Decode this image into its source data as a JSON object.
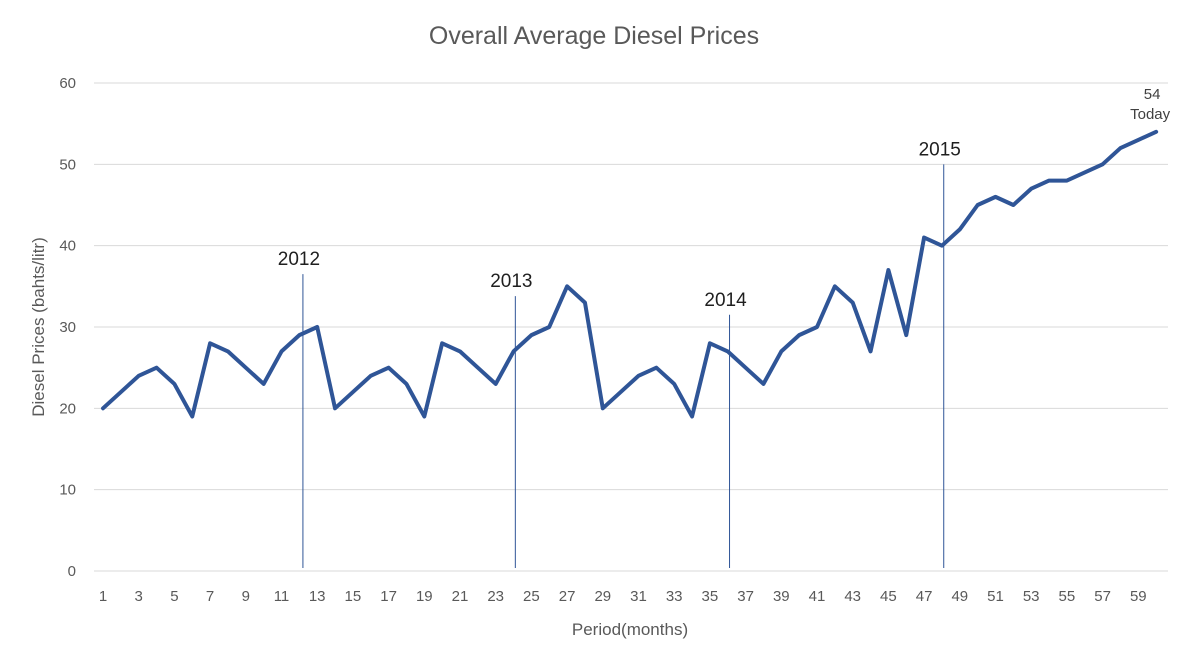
{
  "chart_data": {
    "type": "line",
    "title": "Overall  Average Diesel Prices",
    "xlabel": "Period(months)",
    "ylabel": "Diesel Prices (bahts/litr)",
    "ylim": [
      0,
      60
    ],
    "yticks": [
      0,
      10,
      20,
      30,
      40,
      50,
      60
    ],
    "xlim": [
      1,
      60
    ],
    "xticks": [
      1,
      3,
      5,
      7,
      9,
      11,
      13,
      15,
      17,
      19,
      21,
      23,
      25,
      27,
      29,
      31,
      33,
      35,
      37,
      39,
      41,
      43,
      45,
      47,
      49,
      51,
      53,
      55,
      57,
      59
    ],
    "grid": "horizontal",
    "legend": "none",
    "x": [
      1,
      2,
      3,
      4,
      5,
      6,
      7,
      8,
      9,
      10,
      11,
      12,
      13,
      14,
      15,
      16,
      17,
      18,
      19,
      20,
      21,
      22,
      23,
      24,
      25,
      26,
      27,
      28,
      29,
      30,
      31,
      32,
      33,
      34,
      35,
      36,
      37,
      38,
      39,
      40,
      41,
      42,
      43,
      44,
      45,
      46,
      47,
      48,
      49,
      50,
      51,
      52,
      53,
      54,
      55,
      56,
      57,
      58,
      59,
      60
    ],
    "series": [
      {
        "color": "#2f5597",
        "values": [
          20,
          22,
          24,
          25,
          23,
          19,
          28,
          27,
          25,
          23,
          27,
          29,
          30,
          20,
          22,
          24,
          25,
          23,
          19,
          28,
          27,
          25,
          23,
          27,
          29,
          30,
          35,
          33,
          20,
          22,
          24,
          25,
          23,
          19,
          28,
          27,
          25,
          23,
          27,
          29,
          30,
          35,
          33,
          27,
          37,
          29,
          41,
          40,
          42,
          45,
          46,
          45,
          47,
          48,
          48,
          49,
          50,
          52,
          53,
          54
        ]
      }
    ],
    "annotations": [
      {
        "label": "2012",
        "x": 12.2,
        "y_top": 36.5
      },
      {
        "label": "2013",
        "x": 24.1,
        "y_top": 33.8
      },
      {
        "label": "2014",
        "x": 36.1,
        "y_top": 31.5
      },
      {
        "label": "2015",
        "x": 48.1,
        "y_top": 50
      }
    ],
    "end_label": {
      "value": "54",
      "text": "Today"
    }
  }
}
